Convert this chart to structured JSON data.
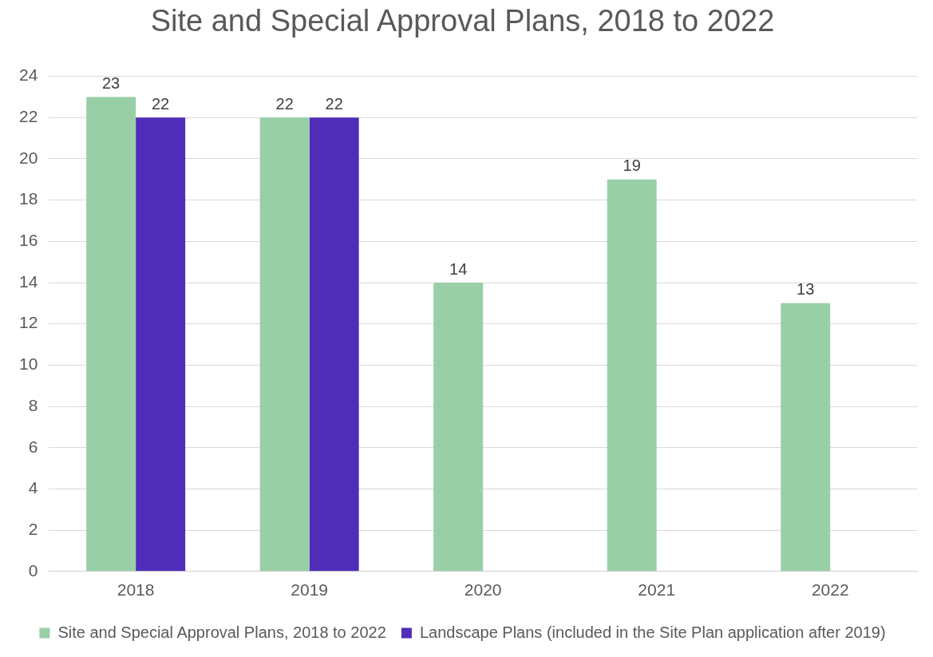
{
  "chart_data": {
    "type": "bar",
    "title": "Site and Special Approval Plans, 2018 to 2022",
    "categories": [
      "2018",
      "2019",
      "2020",
      "2021",
      "2022"
    ],
    "series": [
      {
        "name": "Site and Special Approval Plans, 2018 to 2022",
        "color": "#99cfa7",
        "values": [
          23,
          22,
          14,
          19,
          13
        ]
      },
      {
        "name": "Landscape Plans (included in the Site Plan application after 2019)",
        "color": "#4f2db8",
        "values": [
          22,
          22,
          null,
          null,
          null
        ]
      }
    ],
    "ylim": [
      0,
      24
    ],
    "yticks": [
      0,
      2,
      4,
      6,
      8,
      10,
      12,
      14,
      16,
      18,
      20,
      22,
      24
    ],
    "grid": "y",
    "legend": "bottom",
    "data_labels": true
  }
}
